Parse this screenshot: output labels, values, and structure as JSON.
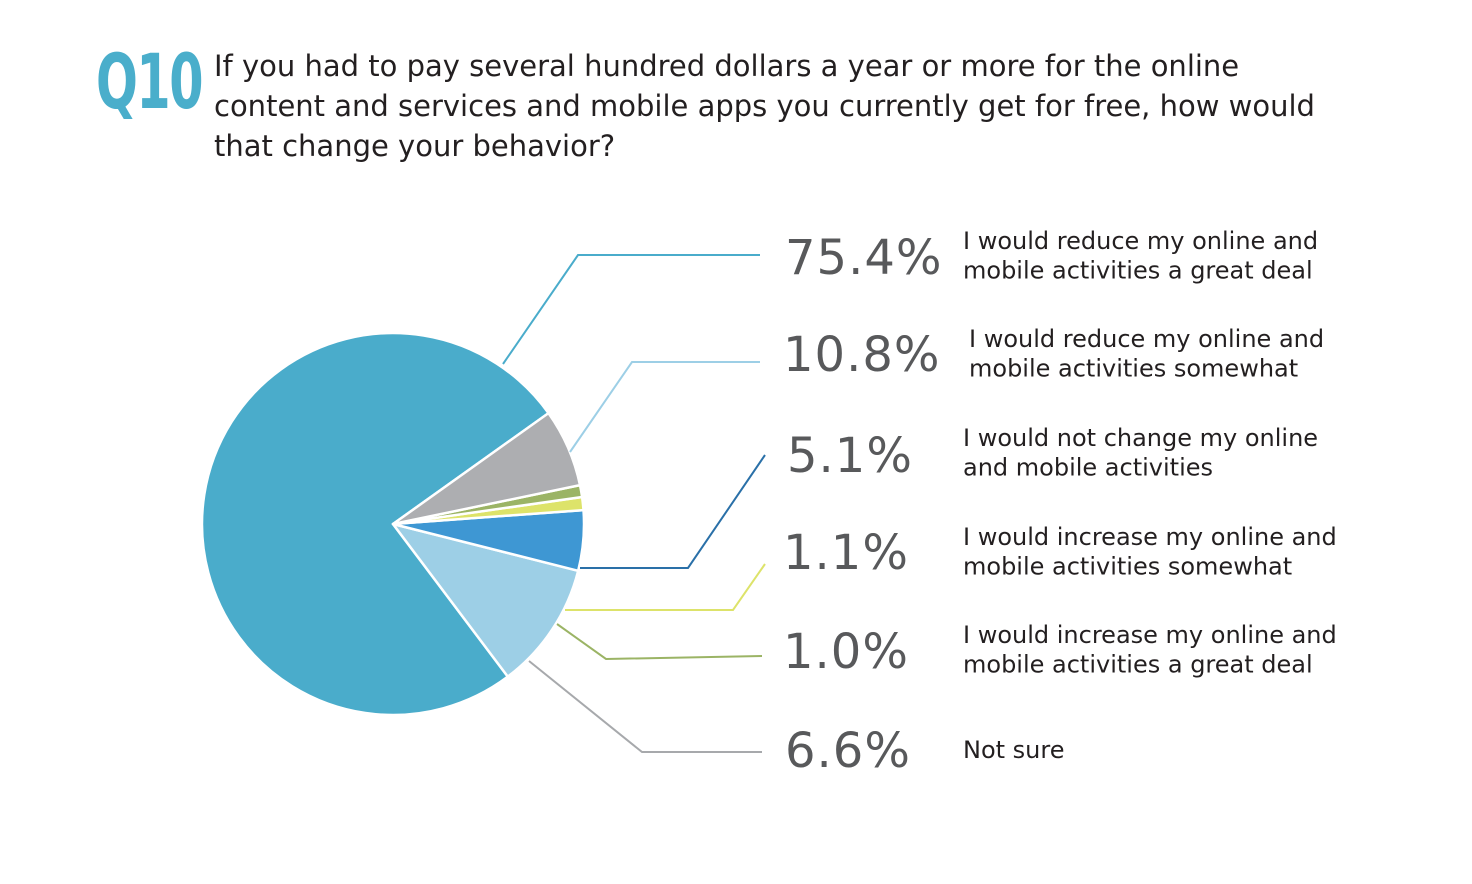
{
  "question": {
    "tag": "Q10",
    "text": "If you had to pay several hundred dollars a year or more for the online content and services and mobile apps you currently get for free, how would that change your behavior?"
  },
  "chart_data": {
    "type": "pie",
    "title": "",
    "slices": [
      {
        "value": 75.4,
        "value_label": "75.4%",
        "label_lines": [
          "I would reduce my online and",
          "mobile activities a great deal"
        ],
        "color": "#4aaccb"
      },
      {
        "value": 10.8,
        "value_label": "10.8%",
        "label_lines": [
          "I would reduce my online and",
          "mobile activities somewhat"
        ],
        "color": "#9dcfe6"
      },
      {
        "value": 5.1,
        "value_label": "5.1%",
        "label_lines": [
          "I would not change my online",
          "and mobile activities"
        ],
        "color": "#3e97d3"
      },
      {
        "value": 1.1,
        "value_label": "1.1%",
        "label_lines": [
          "I would increase my online and",
          "mobile activities somewhat"
        ],
        "color": "#dde36a"
      },
      {
        "value": 1.0,
        "value_label": "1.0%",
        "label_lines": [
          "I would increase my online and",
          "mobile activities a great deal"
        ],
        "color": "#9bb465"
      },
      {
        "value": 6.6,
        "value_label": "6.6%",
        "label_lines": [
          "Not sure"
        ],
        "color": "#adaeb1"
      }
    ],
    "leader_colors": [
      "#4aaccb",
      "#9dcfe6",
      "#2a70a8",
      "#dde36a",
      "#9bb465",
      "#a7a9ac"
    ]
  }
}
